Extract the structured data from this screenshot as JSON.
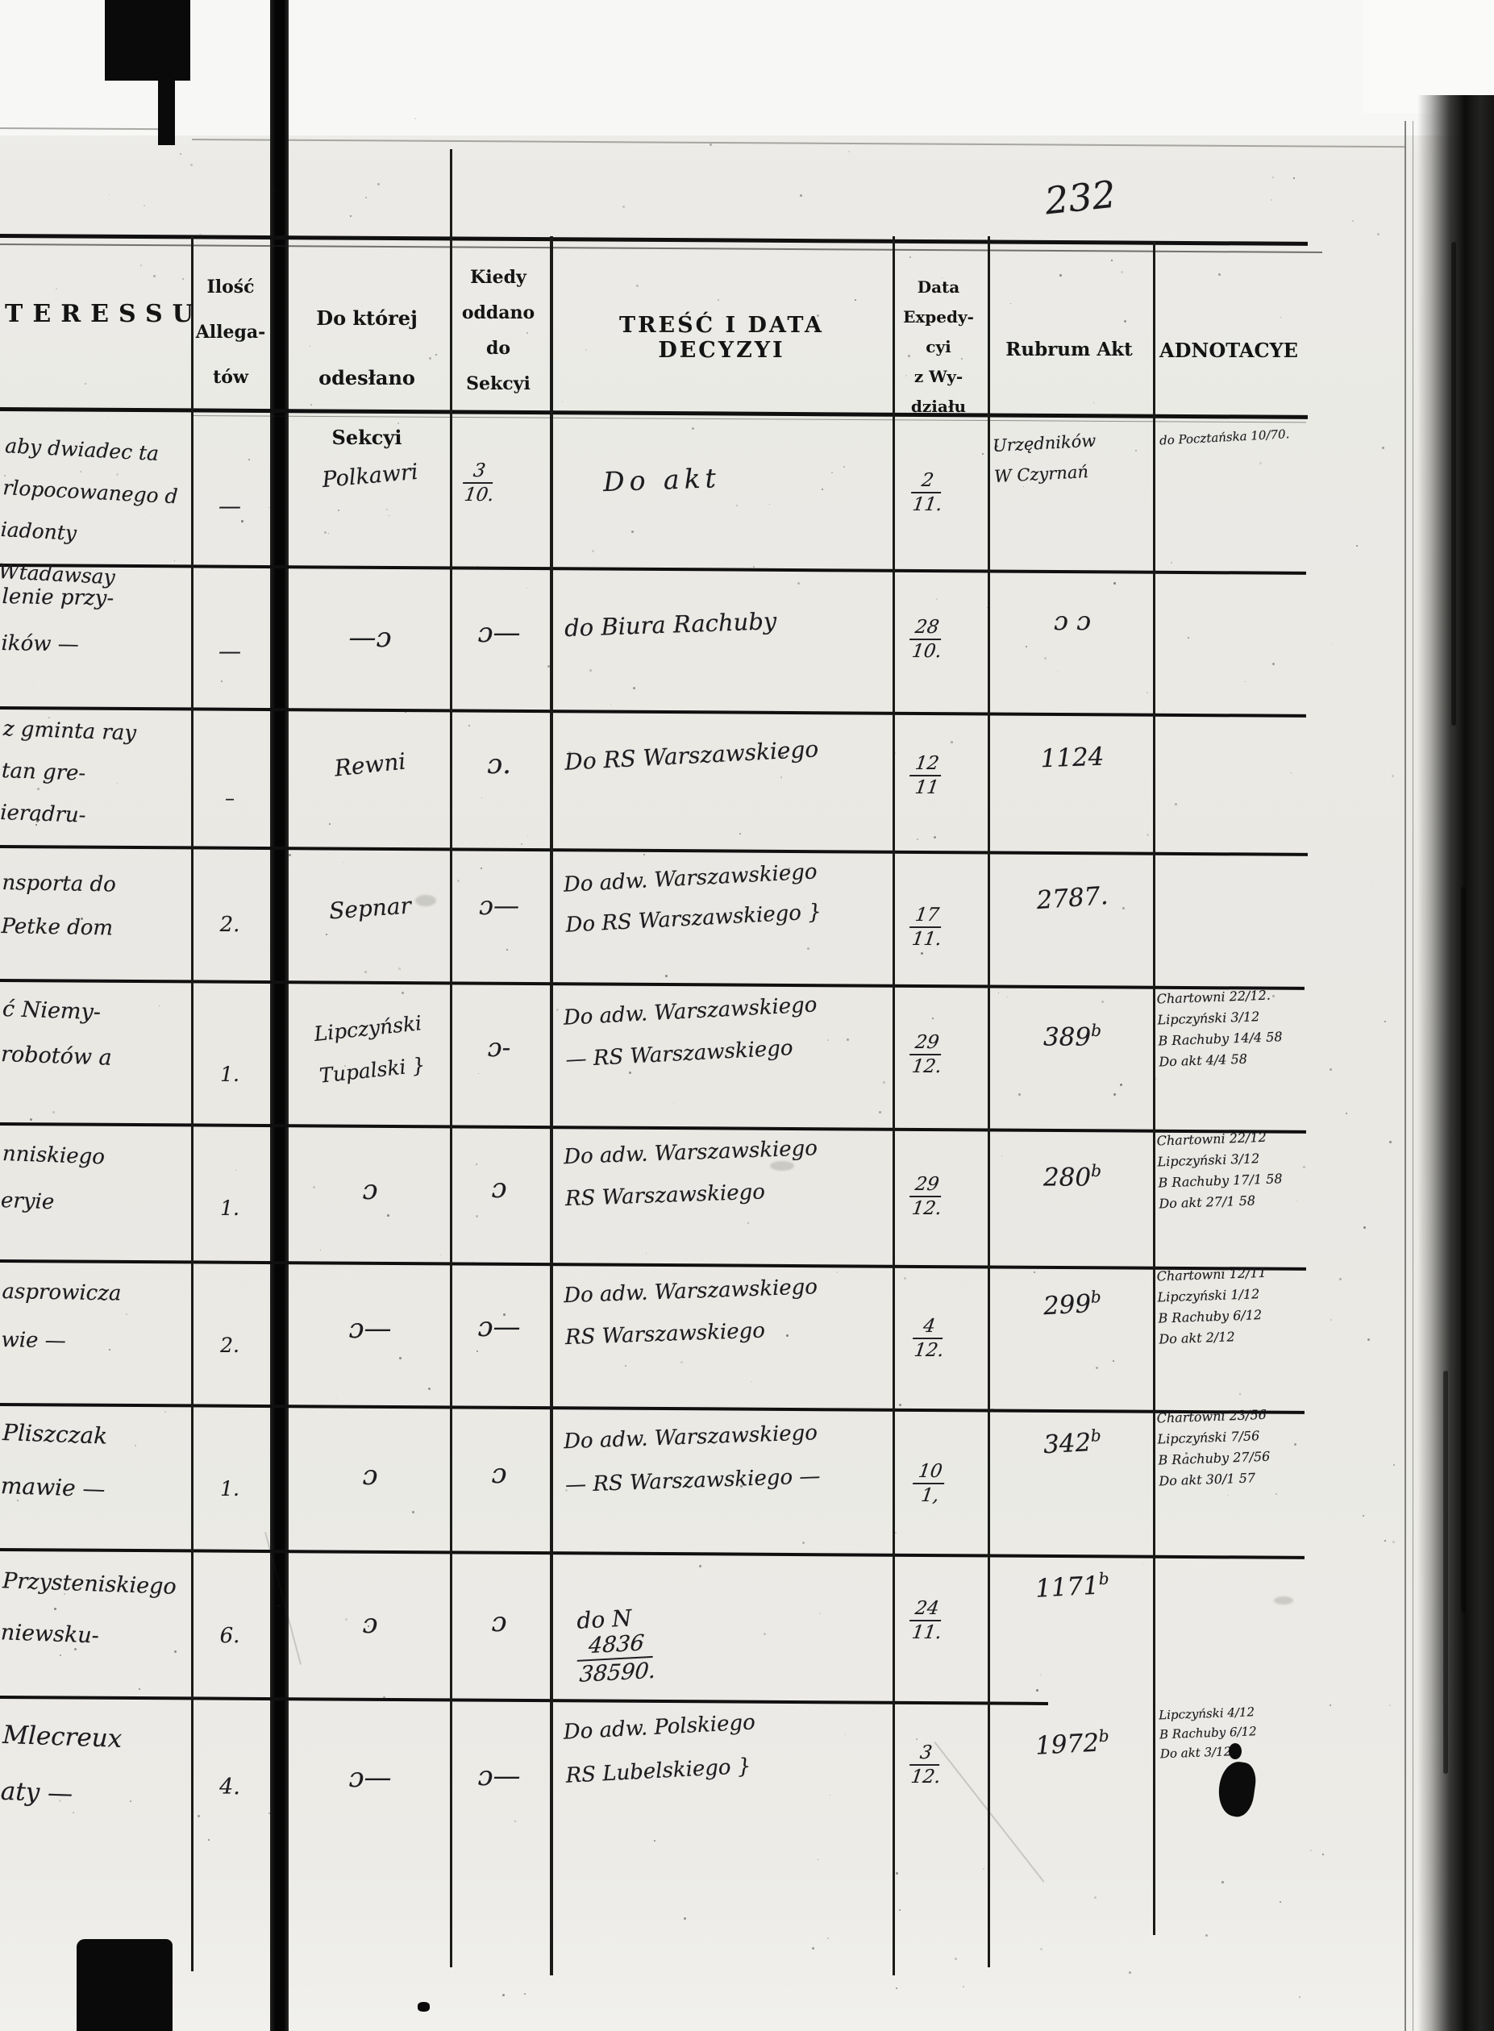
{
  "page": {
    "number": "232"
  },
  "table": {
    "headers": {
      "interessu": "TERESSU",
      "allegatow": "Ilość\nAllega-\ntów",
      "sekcyi": "Do której\nodesłano Sekcyi",
      "kiedy": "Kiedy\noddano\ndo\nSekcyi",
      "tresc": "TREŚĆ I DATA DECYZYI",
      "data_exp": "Data\nExpedy-\ncyi\nz Wy-\ndziału",
      "rubrum": "Rubrum Akt",
      "adnotacye": "ADNOTACYE"
    },
    "rows": [
      {
        "interessu": "aby dwiadec ta\nrlopocowanego d\niadonty Wtadawsay",
        "allegatow": "—",
        "sekcyi": "Polkawri",
        "kiedy": {
          "t": "3",
          "b": "10."
        },
        "tresc": "Do akt",
        "data_exp": {
          "t": "2",
          "b": "11."
        },
        "rubrum": "Urzędników\nW Czyrnań",
        "adnotacye": "do Pocztańska 10/70."
      },
      {
        "interessu": "lenie przy-\ników  —",
        "allegatow": "—",
        "sekcyi": "—ɔ",
        "kiedy": "ɔ—",
        "tresc": "do Biura Rachuby",
        "data_exp": {
          "t": "28",
          "b": "10."
        },
        "rubrum": "ɔ   ɔ",
        "adnotacye": ""
      },
      {
        "interessu": "z gminta ray\ntan gre-\nieradru-",
        "allegatow": "–",
        "sekcyi": "Rewni",
        "kiedy": "ɔ.",
        "tresc": "Do RS Warszawskiego",
        "data_exp": {
          "t": "12",
          "b": "11"
        },
        "rubrum": "1124",
        "adnotacye": ""
      },
      {
        "interessu": "nsporta do\nPetke dom",
        "allegatow": "2.",
        "sekcyi": "Sepnar",
        "kiedy": "ɔ—",
        "tresc": "Do adw. Warszawskiego\nDo RS Warszawskiego }",
        "data_exp": {
          "t": "17",
          "b": "11."
        },
        "rubrum": "2787.",
        "adnotacye": ""
      },
      {
        "interessu": "ć Niemy-\nrobotów a",
        "allegatow": "1.",
        "sekcyi": "Lipczyński\nTupalski }",
        "kiedy": "ɔ-",
        "tresc": "Do adw. Warszawskiego\n— RS Warszawskiego",
        "data_exp": {
          "t": "29",
          "b": "12."
        },
        "rubrum": {
          "v": "389",
          "sup": "b"
        },
        "adnotacye": "Chartowni 22/12.\nLipczyński 3/12\nB Rachuby 14/4 58\nDo akt 4/4 58"
      },
      {
        "interessu": "nniskiego\neryie",
        "allegatow": "1.",
        "sekcyi": "ɔ",
        "kiedy": "ɔ",
        "tresc": "Do adw. Warszawskiego\nRS Warszawskiego",
        "data_exp": {
          "t": "29",
          "b": "12."
        },
        "rubrum": {
          "v": "280",
          "sup": "b"
        },
        "adnotacye": "Chartowni 22/12\nLipczyński 3/12\nB Rachuby 17/1 58\nDo akt 27/1 58"
      },
      {
        "interessu": "asprowicza\nwie  —",
        "allegatow": "2.",
        "sekcyi": "ɔ—",
        "kiedy": "ɔ—",
        "tresc": "Do adw. Warszawskiego\nRS Warszawskiego",
        "data_exp": {
          "t": "4",
          "b": "12."
        },
        "rubrum": {
          "v": "299",
          "sup": "b"
        },
        "adnotacye": "Chartowni 12/11\nLipczyński 1/12\nB Rachuby 6/12\nDo akt 2/12"
      },
      {
        "interessu": "Pliszczak\nmawie  —",
        "allegatow": "1.",
        "sekcyi": "ɔ",
        "kiedy": "ɔ",
        "tresc": "Do adw. Warszawskiego\n— RS Warszawskiego —",
        "data_exp": {
          "t": "10",
          "b": "1,"
        },
        "rubrum": {
          "v": "342",
          "sup": "b"
        },
        "adnotacye": "Chartowni 23/56\nLipczyński 7/56\nB Rachuby 27/56\nDo akt 30/1 57"
      },
      {
        "interessu": "Przysteniskiego\nniewsku-",
        "allegatow": "6.",
        "sekcyi": "ɔ",
        "kiedy": "ɔ",
        "tresc_prefix": "do N",
        "tresc_frac": {
          "t": "4836",
          "b": "38590."
        },
        "data_exp": {
          "t": "24",
          "b": "11."
        },
        "rubrum": {
          "v": "1171",
          "sup": "b"
        },
        "adnotacye": ""
      },
      {
        "interessu": "Mlecreux\naty  —",
        "allegatow": "4.",
        "sekcyi": "ɔ—",
        "kiedy": "ɔ—",
        "tresc": "Do adw. Polskiego\nRS Lubelskiego }",
        "data_exp": {
          "t": "3",
          "b": "12."
        },
        "rubrum": {
          "v": "1972",
          "sup": "b"
        },
        "adnotacye": "Lipczyński 4/12\nB Rachuby 6/12\nDo akt 3/12"
      }
    ]
  }
}
